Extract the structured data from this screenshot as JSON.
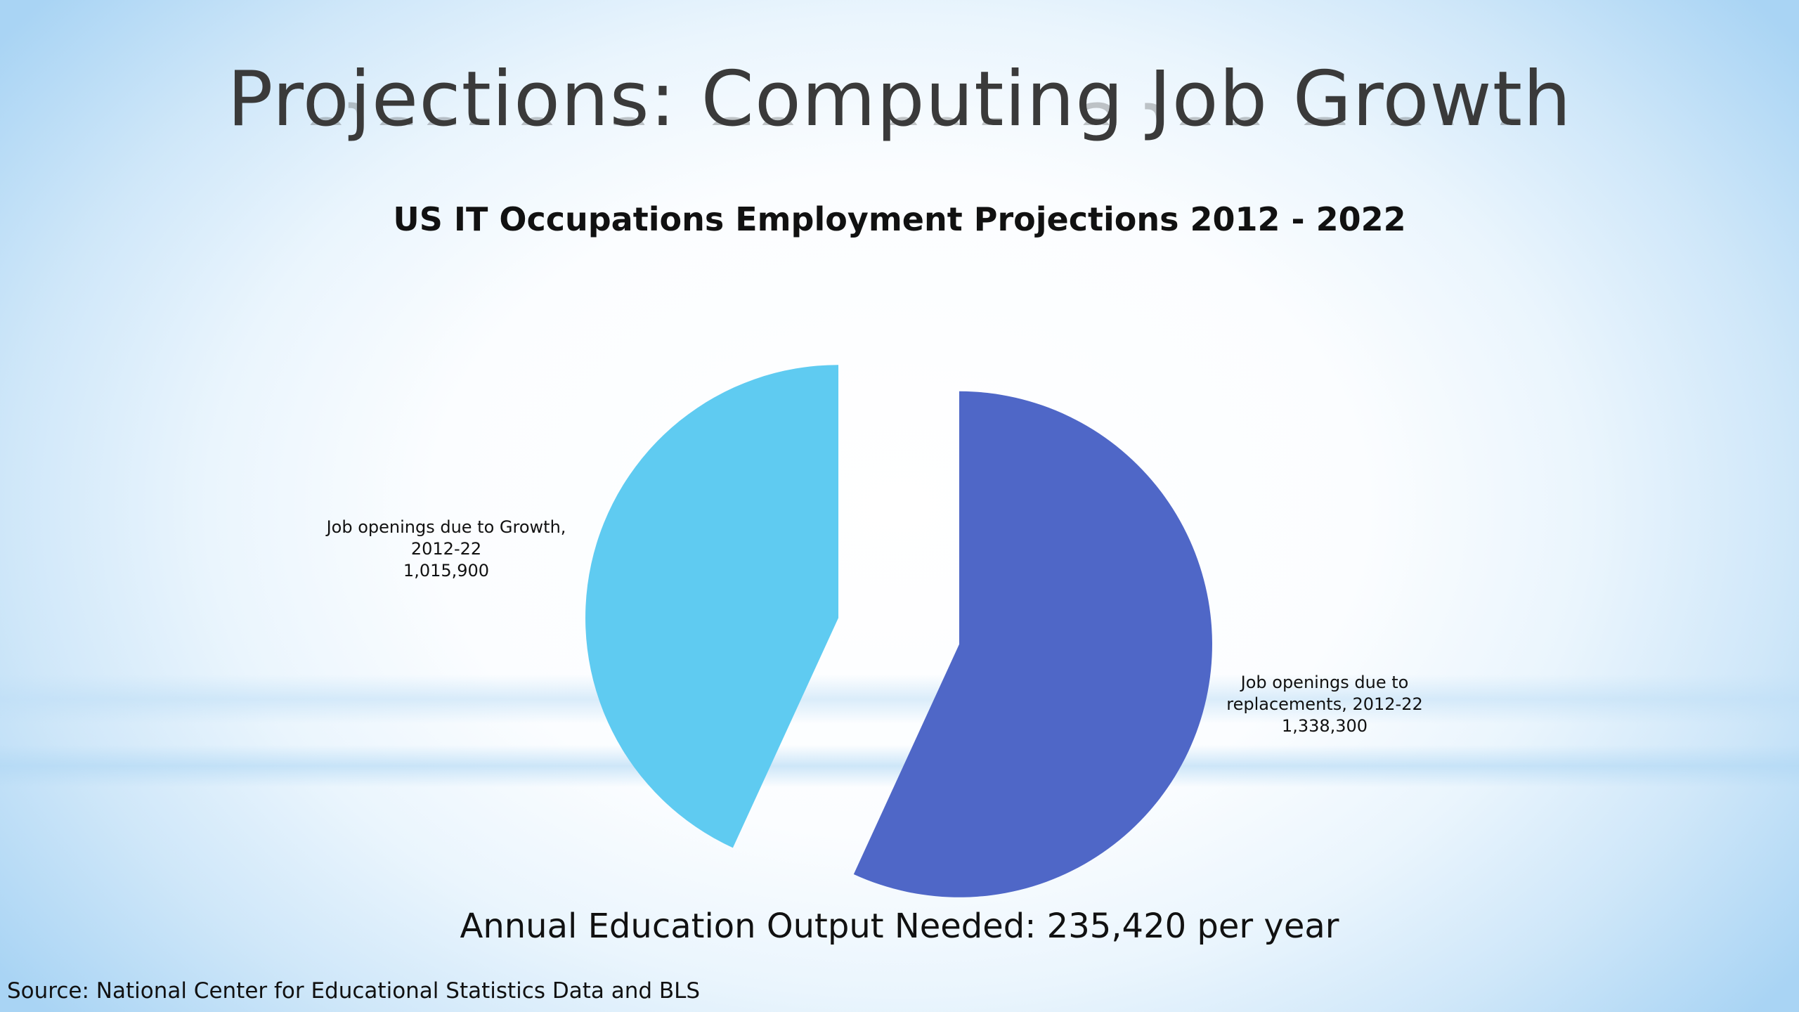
{
  "slide": {
    "title": "Projections: Computing Job Growth",
    "note": "Annual Education Output Needed: 235,420 per year",
    "source": "Source: National Center for Educational Statistics Data and BLS"
  },
  "chart_data": {
    "type": "pie",
    "title": "US IT Occupations Employment Projections 2012 - 2022",
    "labels": [
      {
        "line1": "Job openings due to Growth,",
        "line2": "2012-22",
        "line3": "1,015,900"
      },
      {
        "line1": "Job openings due to",
        "line2": "replacements, 2012-22",
        "line3": "1,338,300"
      }
    ],
    "slices": [
      {
        "name": "Job openings due to Growth, 2012-22",
        "value": 1015900,
        "color": "#5fcbf1",
        "exploded": true
      },
      {
        "name": "Job openings due to replacements, 2012-22",
        "value": 1338300,
        "color": "#4f67c7",
        "exploded": true
      }
    ]
  }
}
